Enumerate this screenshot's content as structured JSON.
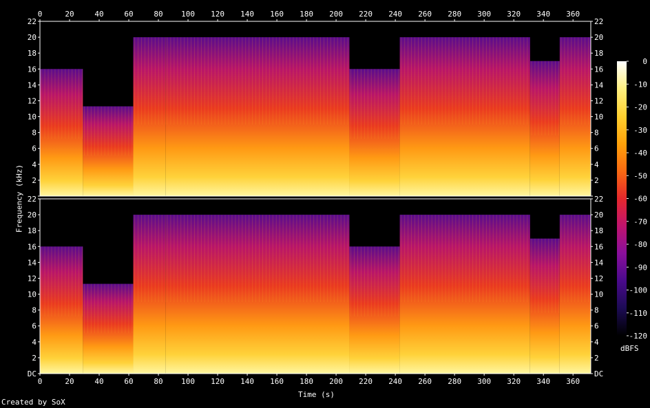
{
  "chart_data": {
    "type": "heatmap",
    "subtype": "spectrogram",
    "xlabel": "Time (s)",
    "ylabel": "Frequency (kHz)",
    "x_range": [
      0,
      372
    ],
    "x_ticks": [
      0,
      20,
      40,
      60,
      80,
      100,
      120,
      140,
      160,
      180,
      200,
      220,
      240,
      260,
      280,
      300,
      320,
      340,
      360
    ],
    "y_range_khz": [
      0,
      22
    ],
    "y_ticks": [
      "DC",
      "2",
      "4",
      "6",
      "8",
      "10",
      "12",
      "14",
      "16",
      "18",
      "20",
      "22"
    ],
    "channels": 2,
    "colorbar": {
      "label": "dBFS",
      "range": [
        -120,
        0
      ],
      "ticks": [
        0,
        -10,
        -20,
        -30,
        -40,
        -50,
        -60,
        -70,
        -80,
        -90,
        -100,
        -110,
        -120
      ],
      "colormap": [
        "#000000",
        "#1c0b54",
        "#4a0a8c",
        "#8a0f9c",
        "#c0146e",
        "#e5282c",
        "#fa6a12",
        "#ffa20a",
        "#ffd030",
        "#fff080",
        "#ffffff"
      ]
    },
    "segments": [
      {
        "start": 0,
        "end": 29,
        "cutoff_khz": 16
      },
      {
        "start": 29,
        "end": 63,
        "cutoff_khz": 11.3
      },
      {
        "start": 63,
        "end": 85,
        "cutoff_khz": 20
      },
      {
        "start": 85,
        "end": 209,
        "cutoff_khz": 20
      },
      {
        "start": 209,
        "end": 243,
        "cutoff_khz": 16
      },
      {
        "start": 243,
        "end": 331,
        "cutoff_khz": 20
      },
      {
        "start": 331,
        "end": 351,
        "cutoff_khz": 17
      },
      {
        "start": 351,
        "end": 372,
        "cutoff_khz": 20
      }
    ]
  },
  "footer": "Created by SoX"
}
